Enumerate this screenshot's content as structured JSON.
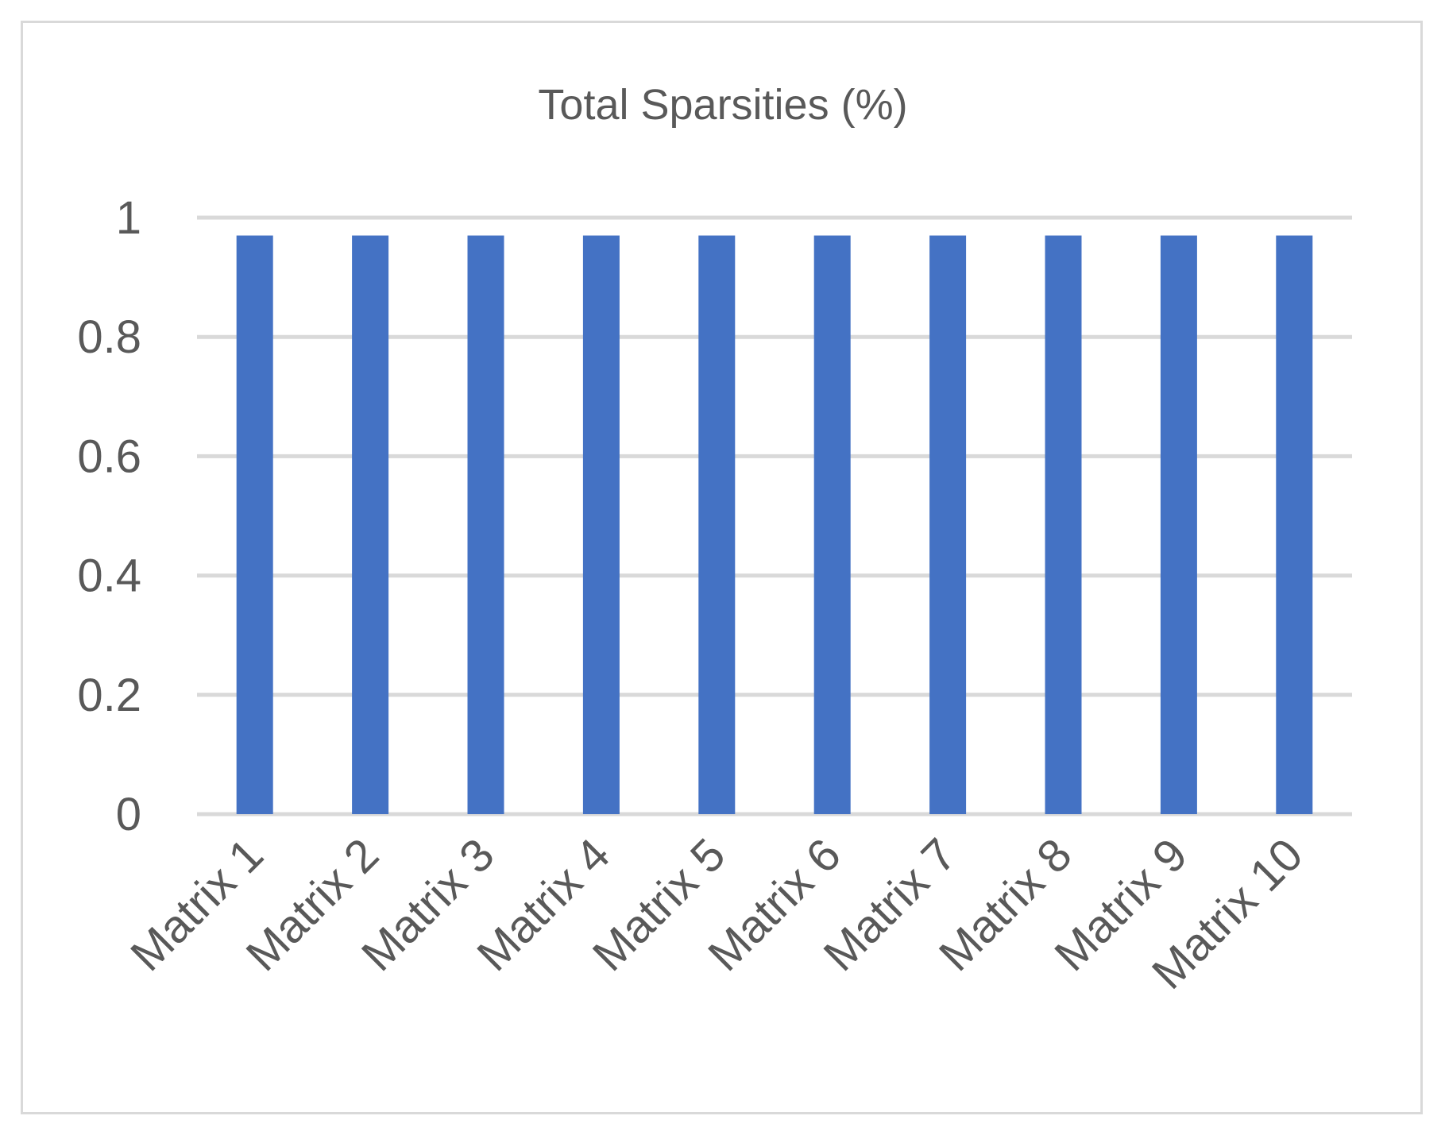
{
  "chart_data": {
    "type": "bar",
    "title": "Total Sparsities (%)",
    "xlabel": "",
    "ylabel": "",
    "categories": [
      "Matrix 1",
      "Matrix 2",
      "Matrix 3",
      "Matrix 4",
      "Matrix 5",
      "Matrix 6",
      "Matrix 7",
      "Matrix 8",
      "Matrix 9",
      "Matrix 10"
    ],
    "values": [
      0.97,
      0.97,
      0.97,
      0.97,
      0.97,
      0.97,
      0.97,
      0.97,
      0.97,
      0.97
    ],
    "ylim": [
      0,
      1
    ],
    "yticks": [
      "0",
      "0.2",
      "0.4",
      "0.6",
      "0.8",
      "1"
    ],
    "grid": true,
    "legend": "none",
    "colors": {
      "bar": "#4472c4",
      "grid": "#d9d9d9",
      "text": "#595959",
      "border": "#d9d9d9"
    }
  }
}
